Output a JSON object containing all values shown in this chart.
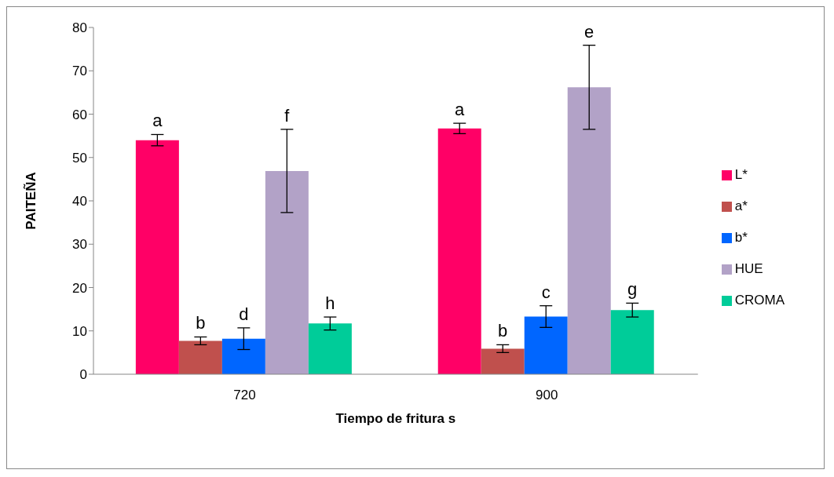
{
  "chart_data": {
    "type": "bar",
    "xlabel": "Tiempo de fritura s",
    "ylabel": "PAITEÑA",
    "categories": [
      "720",
      "900"
    ],
    "series": [
      {
        "name": "L*",
        "color": "#ff0066",
        "values": [
          54.0,
          56.7
        ],
        "errors": [
          1.3,
          1.2
        ],
        "value_labels": [
          "a",
          "a"
        ]
      },
      {
        "name": "a*",
        "color": "#c0504d",
        "values": [
          7.7,
          5.9
        ],
        "errors": [
          0.9,
          0.9
        ],
        "value_labels": [
          "b",
          "b"
        ]
      },
      {
        "name": "b*",
        "color": "#0066ff",
        "values": [
          8.2,
          13.3
        ],
        "errors": [
          2.5,
          2.5
        ],
        "value_labels": [
          "d",
          "c"
        ]
      },
      {
        "name": "HUE",
        "color": "#b2a2c7",
        "values": [
          46.9,
          66.2
        ],
        "errors": [
          9.6,
          9.7
        ],
        "value_labels": [
          "f",
          "e"
        ]
      },
      {
        "name": "CROMA",
        "color": "#00cc99",
        "values": [
          11.7,
          14.8
        ],
        "errors": [
          1.5,
          1.6
        ],
        "value_labels": [
          "h",
          "g"
        ]
      }
    ],
    "ylim": [
      0,
      80
    ],
    "yticks": [
      0,
      10,
      20,
      30,
      40,
      50,
      60,
      70,
      80
    ],
    "grid": false,
    "legend": "right"
  }
}
